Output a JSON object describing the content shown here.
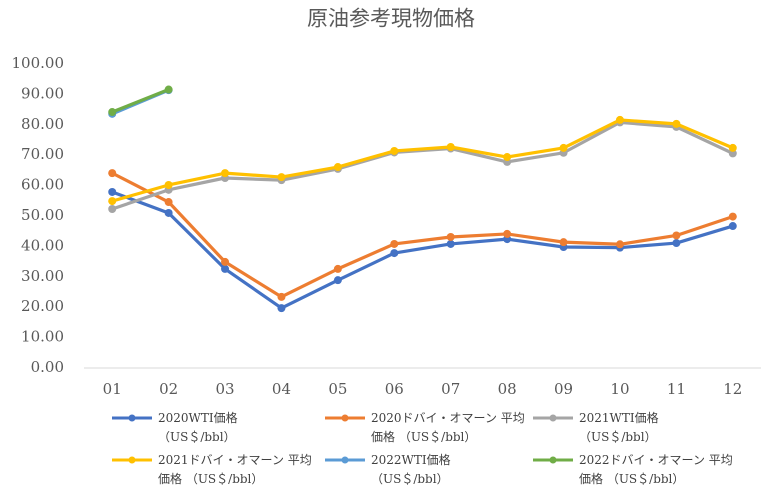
{
  "chart_data": {
    "type": "line",
    "title": "原油参考現物価格",
    "categories": [
      "01",
      "02",
      "03",
      "04",
      "05",
      "06",
      "07",
      "08",
      "09",
      "10",
      "11",
      "12"
    ],
    "ylim": [
      0,
      100
    ],
    "yticks": [
      {
        "value": 0,
        "label": "0.00"
      },
      {
        "value": 10,
        "label": "10.00"
      },
      {
        "value": 20,
        "label": "20.00"
      },
      {
        "value": 30,
        "label": "30.00"
      },
      {
        "value": 40,
        "label": "40.00"
      },
      {
        "value": 50,
        "label": "50.00"
      },
      {
        "value": 60,
        "label": "60.00"
      },
      {
        "value": 70,
        "label": "70.00"
      },
      {
        "value": 80,
        "label": "80.00"
      },
      {
        "value": 90,
        "label": "90.00"
      },
      {
        "value": 100,
        "label": "100.00"
      }
    ],
    "grid": false,
    "series": [
      {
        "name": "2020WTI価格 （US＄/bbl）",
        "color": "#4472c4",
        "values": [
          57.9,
          51,
          32.6,
          19.7,
          28.9,
          37.8,
          40.8,
          42.4,
          39.8,
          39.6,
          41.1,
          46.7
        ]
      },
      {
        "name": "2020ドバイ・オマーン 平均価格 （US＄/bbl）",
        "color": "#ed7d31",
        "values": [
          64.1,
          54.6,
          34.9,
          23.4,
          32.6,
          40.8,
          43.1,
          44.1,
          41.4,
          40.7,
          43.6,
          49.8
        ]
      },
      {
        "name": "2021WTI価格 （US＄/bbl）",
        "color": "#a5a5a5",
        "values": [
          52.3,
          58.6,
          62.5,
          61.8,
          65.5,
          70.9,
          72.2,
          67.8,
          70.8,
          80.8,
          79.3,
          70.6
        ]
      },
      {
        "name": "2021ドバイ・オマーン 平均価格 （US＄/bbl）",
        "color": "#ffc000",
        "values": [
          54.9,
          60.2,
          64.1,
          62.8,
          66.1,
          71.4,
          72.7,
          69.4,
          72.4,
          81.6,
          80.3,
          72.4
        ]
      },
      {
        "name": "2022WTI価格 （US＄/bbl）",
        "color": "#5b9bd5",
        "values": [
          83.6,
          91.4,
          null,
          null,
          null,
          null,
          null,
          null,
          null,
          null,
          null,
          null
        ]
      },
      {
        "name": "2022ドバイ・オマーン 平均価格 （US＄/bbl）",
        "color": "#70ad47",
        "values": [
          84.2,
          91.6,
          null,
          null,
          null,
          null,
          null,
          null,
          null,
          null,
          null,
          null
        ]
      }
    ]
  }
}
